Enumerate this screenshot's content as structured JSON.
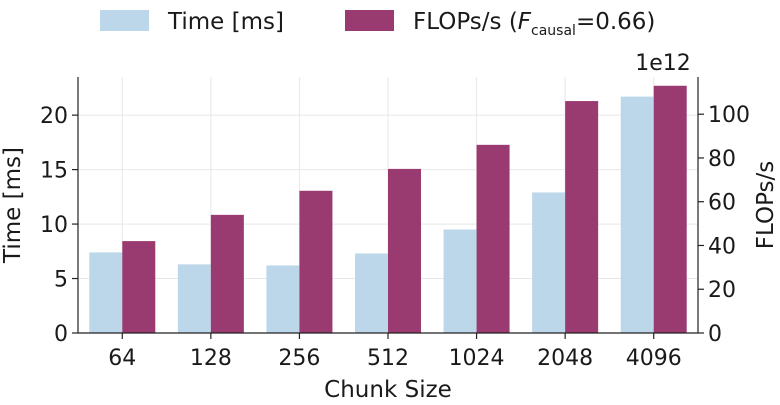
{
  "chart_data": {
    "type": "bar",
    "categories": [
      "64",
      "128",
      "256",
      "512",
      "1024",
      "2048",
      "4096"
    ],
    "xlabel": "Chunk Size",
    "y_left": {
      "label": "Time [ms]",
      "lim": [
        0,
        23.5
      ],
      "ticks": [
        0,
        5,
        10,
        15,
        20
      ]
    },
    "y_right": {
      "label": "FLOPs/s",
      "lim": [
        0,
        117
      ],
      "ticks": [
        0,
        20,
        40,
        60,
        80,
        100
      ],
      "scale_label": "1e12"
    },
    "grid": true,
    "legend_placement": "top",
    "series": [
      {
        "name": "Time [ms]",
        "axis": "left",
        "color": "#bcd6ea",
        "values": [
          7.4,
          6.3,
          6.2,
          7.3,
          9.5,
          12.9,
          21.7
        ]
      },
      {
        "name": "FLOPs/s (F_causal=0.66)",
        "axis": "right",
        "color": "#993a70",
        "values": [
          42,
          54,
          65,
          75,
          86,
          106,
          113
        ]
      }
    ]
  },
  "legend": {
    "time_label": "Time [ms]",
    "flops_prefix": "FLOPs/s (",
    "flops_var": "F",
    "flops_sub": "causal",
    "flops_suffix": "=0.66)"
  }
}
